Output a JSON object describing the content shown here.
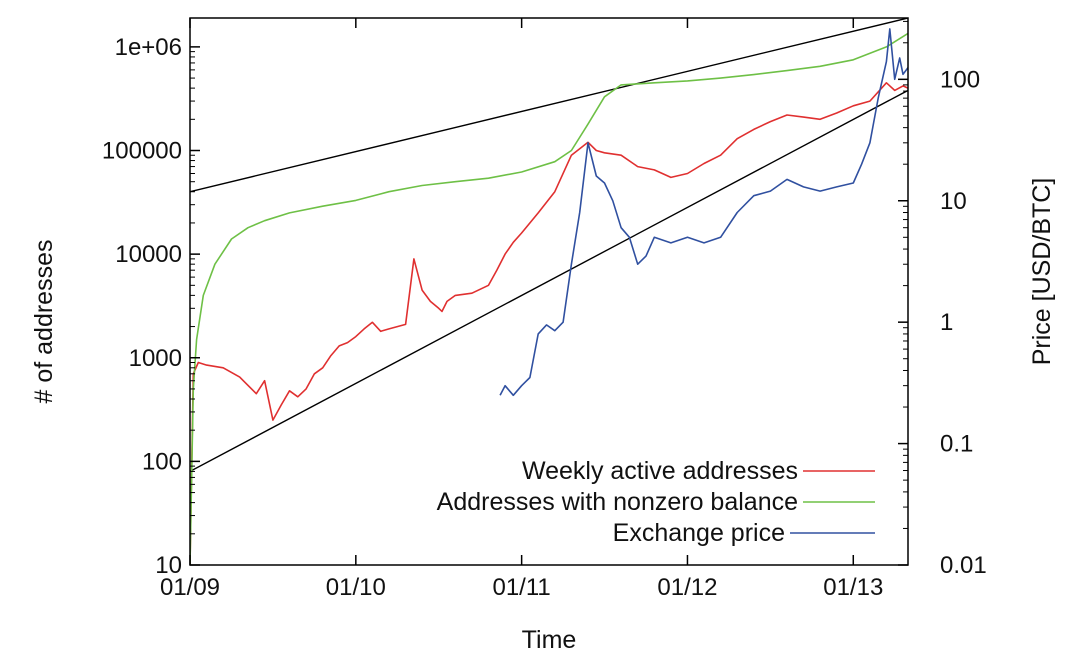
{
  "chart_data": {
    "type": "line",
    "title": "",
    "xlabel": "Time",
    "ylabel_left": "# of addresses",
    "ylabel_right": "Price [USD/BTC]",
    "x_unit": "years since 2009-01",
    "xlim": [
      0,
      4.33
    ],
    "ylim_left": [
      10,
      1900000
    ],
    "ylim_right": [
      0.01,
      320
    ],
    "y_scale_left": "log",
    "y_scale_right": "log",
    "x_ticks": [
      {
        "value": 0,
        "label": "01/09"
      },
      {
        "value": 1,
        "label": "01/10"
      },
      {
        "value": 2,
        "label": "01/11"
      },
      {
        "value": 3,
        "label": "01/12"
      },
      {
        "value": 4,
        "label": "01/13"
      }
    ],
    "y_ticks_left": [
      {
        "value": 10,
        "label": "10"
      },
      {
        "value": 100,
        "label": "100"
      },
      {
        "value": 1000,
        "label": "1000"
      },
      {
        "value": 10000,
        "label": "10000"
      },
      {
        "value": 100000,
        "label": "100000"
      },
      {
        "value": 1000000,
        "label": "1e+06"
      }
    ],
    "y_ticks_right": [
      {
        "value": 0.01,
        "label": "0.01"
      },
      {
        "value": 0.1,
        "label": "0.1"
      },
      {
        "value": 1,
        "label": "1"
      },
      {
        "value": 10,
        "label": "10"
      },
      {
        "value": 100,
        "label": "100"
      }
    ],
    "legend_position": "bottom-right",
    "series": [
      {
        "name": "Weekly active addresses",
        "axis": "left",
        "color": "#e03030",
        "x": [
          0,
          0.02,
          0.05,
          0.1,
          0.2,
          0.3,
          0.4,
          0.45,
          0.5,
          0.55,
          0.6,
          0.65,
          0.7,
          0.75,
          0.8,
          0.85,
          0.9,
          0.95,
          1.0,
          1.05,
          1.1,
          1.15,
          1.2,
          1.25,
          1.3,
          1.35,
          1.4,
          1.45,
          1.5,
          1.52,
          1.55,
          1.6,
          1.7,
          1.8,
          1.85,
          1.9,
          1.95,
          2.0,
          2.1,
          2.2,
          2.3,
          2.4,
          2.45,
          2.5,
          2.6,
          2.7,
          2.8,
          2.9,
          3.0,
          3.1,
          3.2,
          3.3,
          3.4,
          3.5,
          3.6,
          3.7,
          3.8,
          3.9,
          4.0,
          4.1,
          4.2,
          4.25,
          4.3,
          4.33
        ],
        "values": [
          10,
          700,
          900,
          850,
          800,
          650,
          450,
          600,
          250,
          350,
          480,
          420,
          500,
          700,
          800,
          1050,
          1300,
          1400,
          1600,
          1900,
          2200,
          1800,
          1900,
          2000,
          2100,
          9000,
          4500,
          3500,
          3000,
          2800,
          3500,
          4000,
          4200,
          5000,
          7000,
          10000,
          13000,
          16000,
          25000,
          40000,
          90000,
          120000,
          100000,
          95000,
          90000,
          70000,
          65000,
          55000,
          60000,
          75000,
          90000,
          130000,
          160000,
          190000,
          220000,
          210000,
          200000,
          230000,
          270000,
          300000,
          450000,
          380000,
          420000,
          400000
        ]
      },
      {
        "name": "Addresses with nonzero balance",
        "axis": "left",
        "color": "#6ec046",
        "x": [
          0,
          0.02,
          0.04,
          0.08,
          0.15,
          0.25,
          0.35,
          0.45,
          0.6,
          0.8,
          1.0,
          1.2,
          1.4,
          1.6,
          1.8,
          2.0,
          2.2,
          2.3,
          2.4,
          2.5,
          2.6,
          2.8,
          3.0,
          3.2,
          3.4,
          3.6,
          3.8,
          4.0,
          4.2,
          4.33
        ],
        "values": [
          10,
          500,
          1500,
          4000,
          8000,
          14000,
          18000,
          21000,
          25000,
          29000,
          33000,
          40000,
          46000,
          50000,
          54000,
          62000,
          78000,
          100000,
          180000,
          330000,
          430000,
          450000,
          470000,
          500000,
          540000,
          590000,
          650000,
          750000,
          1000000,
          1350000
        ]
      },
      {
        "name": "Exchange price",
        "axis": "right",
        "color": "#3050a0",
        "x": [
          1.87,
          1.9,
          1.95,
          2.0,
          2.05,
          2.1,
          2.15,
          2.2,
          2.25,
          2.3,
          2.35,
          2.4,
          2.45,
          2.5,
          2.55,
          2.6,
          2.65,
          2.7,
          2.75,
          2.8,
          2.9,
          3.0,
          3.1,
          3.2,
          3.3,
          3.4,
          3.5,
          3.6,
          3.7,
          3.8,
          3.9,
          4.0,
          4.05,
          4.1,
          4.15,
          4.2,
          4.22,
          4.25,
          4.28,
          4.3,
          4.33
        ],
        "values": [
          0.25,
          0.3,
          0.25,
          0.3,
          0.35,
          0.8,
          0.95,
          0.85,
          1.0,
          3.0,
          8.0,
          30.0,
          16.0,
          14.0,
          10.0,
          6.0,
          5.0,
          3.0,
          3.5,
          5.0,
          4.5,
          5.0,
          4.5,
          5.0,
          8.0,
          11.0,
          12.0,
          15.0,
          13.0,
          12.0,
          13.0,
          14.0,
          20.0,
          30.0,
          70.0,
          140.0,
          260.0,
          100.0,
          150.0,
          110.0,
          125.0
        ]
      }
    ],
    "trend_lines": [
      {
        "name": "trend-line-upper",
        "axis": "left",
        "x": [
          0,
          4.33
        ],
        "values": [
          40000,
          1900000
        ]
      },
      {
        "name": "trend-line-lower",
        "axis": "left",
        "x": [
          0,
          4.33
        ],
        "values": [
          80,
          380000
        ]
      }
    ]
  }
}
